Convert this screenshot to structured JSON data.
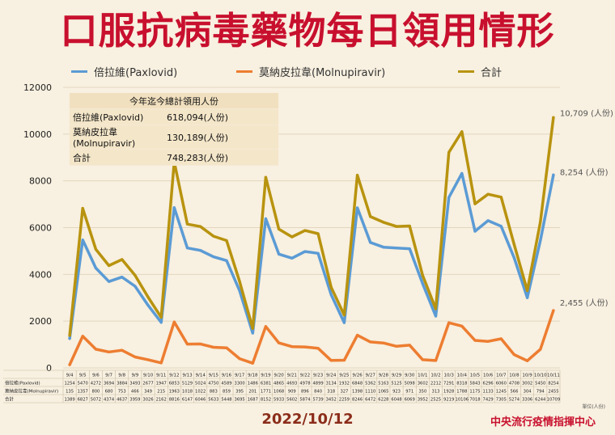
{
  "title": "口服抗病毒藥物每日領用情形",
  "legend": [
    {
      "label": "倍拉維(Paxlovid)",
      "color": "#5b9bd5"
    },
    {
      "label": "莫納皮拉韋(Molnupiravir)",
      "color": "#ed7d31"
    },
    {
      "label": "合計",
      "color": "#b8930f"
    }
  ],
  "summary": {
    "header": "今年迄今總計領用人份",
    "rows": [
      {
        "label": "倍拉維(Paxlovid)",
        "value": "618,094(人份)"
      },
      {
        "label": "莫納皮拉韋(Molnupiravir)",
        "value": "130,189(人份)"
      },
      {
        "label": "合計",
        "value": "748,283(人份)"
      }
    ]
  },
  "end_labels": {
    "total": "10,709 (人份)",
    "paxlovid": "8,254 (人份)",
    "molnupiravir": "2,455 (人份)"
  },
  "table_row_labels": [
    "倍拉維(Paxlovid)",
    "莫納皮拉韋(Molnupiravir)",
    "合計"
  ],
  "footer": {
    "date": "2022/10/12",
    "org": "中央流行疫情指揮中心",
    "unit": "單位(人份)"
  },
  "chart_data": {
    "type": "line",
    "categories": [
      "9/4",
      "9/5",
      "9/6",
      "9/7",
      "9/8",
      "9/9",
      "9/10",
      "9/11",
      "9/12",
      "9/13",
      "9/14",
      "9/15",
      "9/16",
      "9/17",
      "9/18",
      "9/19",
      "9/20",
      "9/21",
      "9/22",
      "9/23",
      "9/24",
      "9/25",
      "9/26",
      "9/27",
      "9/28",
      "9/29",
      "9/30",
      "10/1",
      "10/2",
      "10/3",
      "10/4",
      "10/5",
      "10/6",
      "10/7",
      "10/8",
      "10/9",
      "10/10",
      "10/11"
    ],
    "ylim": [
      0,
      12000
    ],
    "yticks": [
      0,
      2000,
      4000,
      6000,
      8000,
      10000,
      12000
    ],
    "series": [
      {
        "name": "倍拉維(Paxlovid)",
        "color": "#5b9bd5",
        "values": [
          1254,
          5470,
          4272,
          3694,
          3884,
          3493,
          2677,
          1947,
          6853,
          5129,
          5024,
          4750,
          4589,
          3300,
          1486,
          6381,
          4865,
          4693,
          4978,
          4899,
          3134,
          1932,
          6848,
          5362,
          5163,
          5125,
          5098,
          3602,
          2212,
          7291,
          8318,
          5843,
          6296,
          6060,
          4708,
          3002,
          5450,
          8254
        ]
      },
      {
        "name": "莫納皮拉韋(Molnupiravir)",
        "color": "#ed7d31",
        "values": [
          135,
          1357,
          800,
          680,
          753,
          466,
          349,
          215,
          1963,
          1018,
          1022,
          883,
          859,
          395,
          201,
          1771,
          1068,
          909,
          896,
          840,
          318,
          327,
          1398,
          1110,
          1065,
          923,
          971,
          350,
          313,
          1928,
          1788,
          1175,
          1133,
          1245,
          566,
          304,
          794,
          2455
        ]
      },
      {
        "name": "合計",
        "color": "#b8930f",
        "values": [
          1389,
          6827,
          5072,
          4374,
          4637,
          3959,
          3026,
          2162,
          8816,
          6147,
          6046,
          5633,
          5448,
          3695,
          1687,
          8152,
          5933,
          5602,
          5874,
          5739,
          3452,
          2259,
          8246,
          6472,
          6228,
          6048,
          6069,
          3952,
          2525,
          9219,
          10106,
          7018,
          7429,
          7305,
          5274,
          3306,
          6244,
          10709
        ]
      }
    ],
    "table_rows": [
      [
        "1254",
        "5470",
        "4272",
        "3694",
        "3884",
        "3493",
        "2677",
        "1947",
        "6853",
        "5129",
        "5024",
        "4750",
        "4589",
        "3300",
        "1486",
        "6381",
        "4865",
        "4693",
        "4978",
        "4899",
        "3134",
        "1932",
        "6848",
        "5362",
        "5163",
        "5125",
        "5098",
        "3602",
        "2212",
        "7291",
        "8318",
        "5843",
        "6296",
        "6060",
        "4708",
        "3002",
        "5450",
        "8254"
      ],
      [
        "135",
        "1357",
        "800",
        "680",
        "753",
        "466",
        "349",
        "215",
        "1963",
        "1018",
        "1022",
        "883",
        "859",
        "395",
        "201",
        "1771",
        "1068",
        "909",
        "896",
        "840",
        "318",
        "327",
        "1398",
        "1110",
        "1065",
        "923",
        "971",
        "350",
        "313",
        "1928",
        "1788",
        "1175",
        "1133",
        "1245",
        "566",
        "304",
        "794",
        "2455"
      ],
      [
        "1389",
        "6827",
        "5072",
        "4374",
        "4637",
        "3959",
        "3026",
        "2162",
        "8816",
        "6147",
        "6046",
        "5633",
        "5448",
        "3695",
        "1687",
        "8152",
        "5933",
        "5602",
        "5874",
        "5739",
        "3452",
        "2259",
        "8246",
        "6472",
        "6228",
        "6048",
        "6069",
        "3952",
        "2525",
        "9219",
        "10106",
        "7018",
        "7429",
        "7305",
        "5274",
        "3306",
        "6244",
        "10709"
      ]
    ]
  }
}
